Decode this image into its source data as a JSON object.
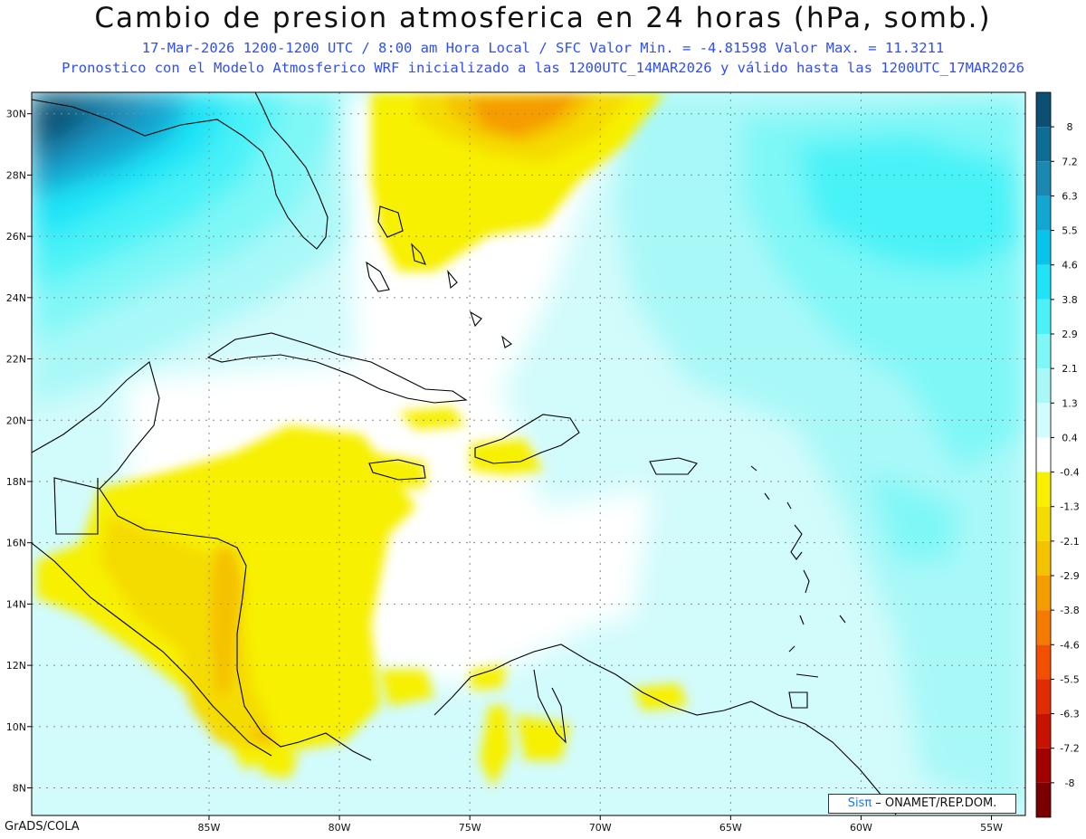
{
  "title": "Cambio de presion atmosferica en 24 horas (hPa, somb.)",
  "subtitle_line1": "17-Mar-2026   1200-1200 UTC / 8:00 am Hora Local / SFC   Valor Min. = -4.81598  Valor Max. = 11.3211",
  "subtitle_line2": "Pronostico con el Modelo Atmosferico WRF inicializado a las 1200UTC_14MAR2026 y válido hasta las  1200UTC_17MAR2026",
  "map": {
    "lon_ticks": [
      "85W",
      "80W",
      "75W",
      "70W",
      "65W",
      "60W",
      "55W"
    ],
    "lat_ticks": [
      "30N",
      "28N",
      "26N",
      "24N",
      "22N",
      "20N",
      "18N",
      "16N",
      "14N",
      "12N",
      "10N",
      "8N"
    ],
    "gridlines": true,
    "extent": {
      "lon_min": -91.8,
      "lon_max": -53.7,
      "lat_min": 7.1,
      "lat_max": 30.7
    }
  },
  "colorbar": {
    "placement": "right",
    "bins": [
      {
        "label": "8",
        "color": "#0b4f73"
      },
      {
        "label": "7.2",
        "color": "#0e6d94"
      },
      {
        "label": "6.3",
        "color": "#1a88b3"
      },
      {
        "label": "5.5",
        "color": "#12a6d1"
      },
      {
        "label": "4.6",
        "color": "#09c4ea"
      },
      {
        "label": "3.8",
        "color": "#1fe4f7"
      },
      {
        "label": "2.9",
        "color": "#4af2f7"
      },
      {
        "label": "2.1",
        "color": "#7ff7f7"
      },
      {
        "label": "1.3",
        "color": "#a9f8f8"
      },
      {
        "label": "0.4",
        "color": "#d2fbfb"
      },
      {
        "label": "-0.4",
        "color": "#ffffff"
      },
      {
        "label": "-1.3",
        "color": "#f7f000"
      },
      {
        "label": "-2.1",
        "color": "#f5dc00"
      },
      {
        "label": "-2.9",
        "color": "#f5c200"
      },
      {
        "label": "-3.8",
        "color": "#f59d00"
      },
      {
        "label": "-4.6",
        "color": "#f57a00"
      },
      {
        "label": "-5.5",
        "color": "#f25000"
      },
      {
        "label": "-6.3",
        "color": "#e02c00"
      },
      {
        "label": "-7.2",
        "color": "#c81200"
      },
      {
        "label": "-8",
        "color": "#a30000"
      }
    ],
    "bottom_color": "#7a0000"
  },
  "credit": {
    "sis": "Sisπ",
    "text": " – ONAMET/REP.DOM."
  },
  "footer": "GrADS/COLA"
}
